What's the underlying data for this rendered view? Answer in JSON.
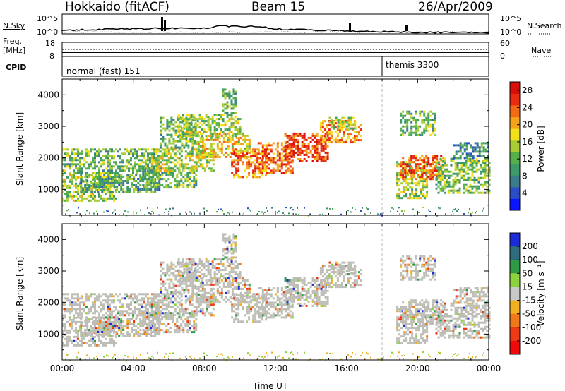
{
  "header": {
    "site": "Hokkaido (fitACF)",
    "beam": "Beam 15",
    "date": "26/Apr/2009"
  },
  "noise_panel": {
    "left_label": "N.Sky",
    "right_label": "N.Search",
    "left_ticks": [
      "10^5",
      "10^0"
    ],
    "right_ticks": [
      "10^5",
      "10^0"
    ]
  },
  "freq_panel": {
    "left_label_1": "Freq.",
    "left_label_2": "[MHz]",
    "left_ticks": [
      "18",
      "8"
    ],
    "right_label": "Nave",
    "right_ticks": [
      "60",
      "0"
    ]
  },
  "cpid_panel": {
    "label": "CPID",
    "modes": [
      {
        "name": "normal (fast) 151",
        "start_hour": 0
      },
      {
        "name": "themis 3300",
        "start_hour": 18
      }
    ]
  },
  "chart_data": [
    {
      "type": "heatmap",
      "panel": "power",
      "ylabel": "Slant Range [km]",
      "xlim": [
        0,
        24
      ],
      "ylim": [
        180,
        4500
      ],
      "y_ticks": [
        "1000",
        "2000",
        "3000",
        "4000"
      ],
      "colorbar_label": "Power [dB]",
      "colorbar_ticks": [
        "28",
        "24",
        "20",
        "16",
        "12",
        "8",
        "4"
      ],
      "colorbar_range": [
        0,
        30
      ],
      "colorbar_colors": [
        "#0a14ff",
        "#2b4ec8",
        "#3a7c8c",
        "#3e9a68",
        "#55b04a",
        "#a8cc34",
        "#f3df1a",
        "#f5a31a",
        "#f26a14",
        "#ea2a10",
        "#d80f0a"
      ],
      "echo_regions": [
        {
          "t0": 0.0,
          "t1": 3.0,
          "r0": 650,
          "r1": 1550,
          "level": 14
        },
        {
          "t0": 0.0,
          "t1": 5.5,
          "r0": 1550,
          "r1": 2300,
          "level": 12
        },
        {
          "t0": 1.0,
          "t1": 5.5,
          "r0": 950,
          "r1": 1500,
          "level": 10
        },
        {
          "t0": 4.5,
          "t1": 7.5,
          "r0": 1050,
          "r1": 1700,
          "level": 12
        },
        {
          "t0": 5.0,
          "t1": 8.5,
          "r0": 1600,
          "r1": 2300,
          "level": 16
        },
        {
          "t0": 5.5,
          "t1": 7.5,
          "r0": 2300,
          "r1": 3300,
          "level": 12
        },
        {
          "t0": 6.5,
          "t1": 10.0,
          "r0": 2700,
          "r1": 3400,
          "level": 14
        },
        {
          "t0": 7.5,
          "t1": 10.5,
          "r0": 2000,
          "r1": 2800,
          "level": 18
        },
        {
          "t0": 9.0,
          "t1": 9.8,
          "r0": 3400,
          "r1": 4200,
          "level": 12
        },
        {
          "t0": 9.5,
          "t1": 11.5,
          "r0": 1400,
          "r1": 2300,
          "level": 24
        },
        {
          "t0": 11.0,
          "t1": 13.0,
          "r0": 1500,
          "r1": 2500,
          "level": 24
        },
        {
          "t0": 12.5,
          "t1": 15.0,
          "r0": 1900,
          "r1": 2800,
          "level": 26
        },
        {
          "t0": 14.5,
          "t1": 16.8,
          "r0": 2500,
          "r1": 3200,
          "level": 22
        },
        {
          "t0": 15.0,
          "t1": 16.5,
          "r0": 2900,
          "r1": 3300,
          "level": 14
        },
        {
          "t0": 18.8,
          "t1": 20.5,
          "r0": 700,
          "r1": 1900,
          "level": 14
        },
        {
          "t0": 19.0,
          "t1": 21.5,
          "r0": 1300,
          "r1": 2100,
          "level": 25
        },
        {
          "t0": 19.0,
          "t1": 21.0,
          "r0": 2700,
          "r1": 3500,
          "level": 12
        },
        {
          "t0": 21.0,
          "t1": 24.0,
          "r0": 900,
          "r1": 2000,
          "level": 13
        },
        {
          "t0": 22.0,
          "t1": 24.0,
          "r0": 2000,
          "r1": 2500,
          "level": 8
        }
      ],
      "ground_scatter": {
        "t0": 0.0,
        "t1": 24.0,
        "r0": 180,
        "r1": 450,
        "level": 6
      }
    },
    {
      "type": "heatmap",
      "panel": "velocity",
      "ylabel": "Slant Range [km]",
      "xlabel": "Time UT",
      "xlim": [
        0,
        24
      ],
      "ylim": [
        180,
        4500
      ],
      "x_ticks": [
        "00:00",
        "04:00",
        "08:00",
        "12:00",
        "16:00",
        "20:00",
        "00:00"
      ],
      "y_ticks": [
        "1000",
        "2000",
        "3000",
        "4000"
      ],
      "colorbar_label": "Velocity [m s⁻¹]",
      "colorbar_ticks": [
        "200",
        "100",
        "50",
        "15",
        "-15",
        "-50",
        "-100",
        "-200"
      ],
      "colorbar_colors": [
        "#1c2bd8",
        "#2e6c7e",
        "#2f9a46",
        "#8cd23c",
        "#c8c8c8",
        "#f0b020",
        "#f07818",
        "#ee3a14",
        "#ee0a0a"
      ],
      "dominant_value": "ground scatter (gray, -15 to 15)"
    }
  ],
  "colors": {
    "ground_scatter": "#bdbdb6",
    "positive_sparse": [
      "#1c2bd8",
      "#2f9a46",
      "#8cd23c"
    ],
    "negative_sparse": [
      "#f0b020",
      "#f07818",
      "#ee3a14"
    ]
  }
}
